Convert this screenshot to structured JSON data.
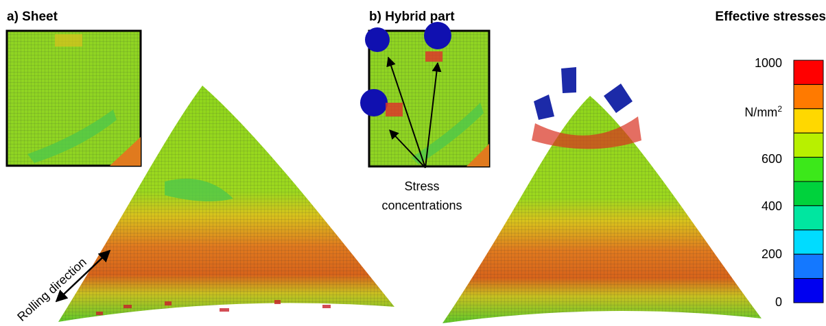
{
  "panel_a": {
    "label": "a) Sheet"
  },
  "panel_b": {
    "label": "b) Hybrid part",
    "annotation": {
      "line1": "Stress",
      "line2": "concentrations"
    }
  },
  "rolling_direction": "Rolling direction",
  "colorbar": {
    "title": "Effective stresses",
    "labels": [
      "1000",
      "600",
      "400",
      "200",
      "0"
    ],
    "unit": {
      "base": "N/mm",
      "exponent": "2"
    },
    "colors": [
      "#ff0000",
      "#ff7a00",
      "#ffd800",
      "#b8f000",
      "#3ce81a",
      "#00d23c",
      "#00e6a0",
      "#00dcff",
      "#1478ff",
      "#0000f0"
    ]
  }
}
